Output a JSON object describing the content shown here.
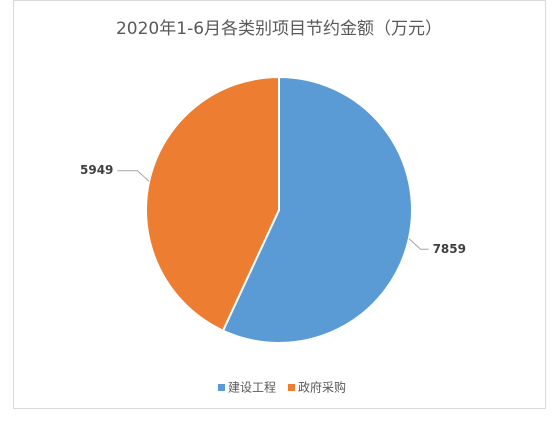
{
  "chart_data": {
    "type": "pie",
    "title": "2020年1-6月各类别项目节约金额（万元）",
    "categories": [
      "建设工程",
      "政府采购"
    ],
    "values": [
      7859,
      5949
    ],
    "colors": [
      "#5b9bd5",
      "#ed7d31"
    ],
    "legend": "bottom"
  }
}
